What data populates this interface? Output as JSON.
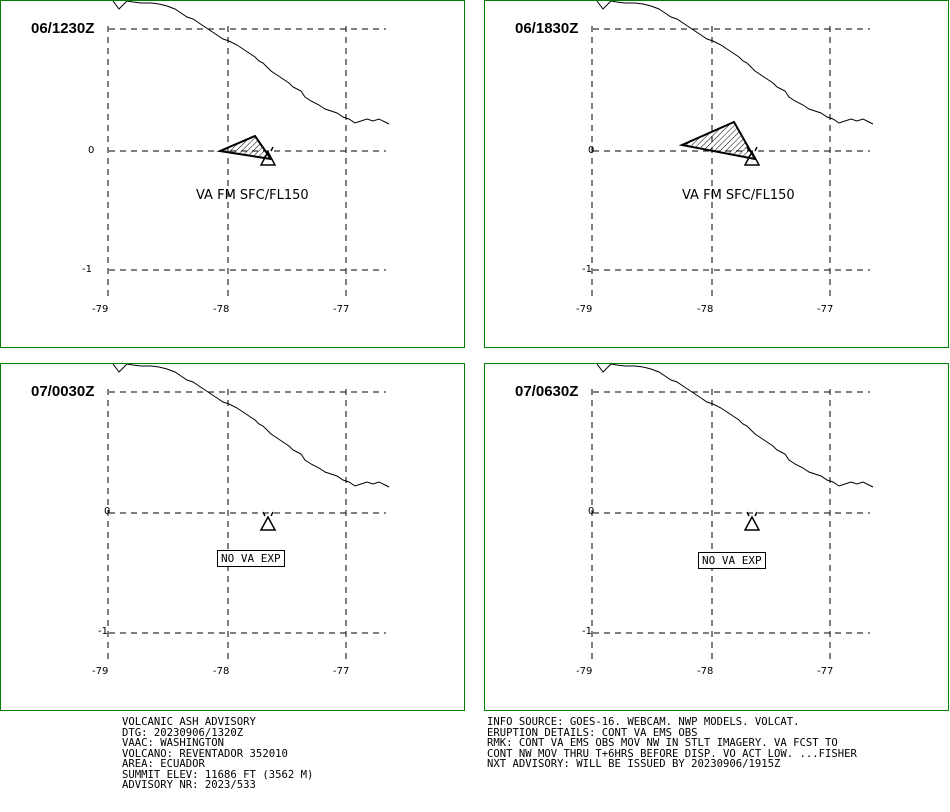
{
  "panels": [
    {
      "time": "06/1230Z",
      "label": "VA FM SFC/FL150",
      "ash": true
    },
    {
      "time": "06/1830Z",
      "label": "VA FM SFC/FL150",
      "ash": true
    },
    {
      "time": "07/0030Z",
      "label": "NO VA EXP",
      "ash": false
    },
    {
      "time": "07/0630Z",
      "label": "NO VA EXP",
      "ash": false
    }
  ],
  "axes": {
    "lon_ticks": [
      "-79",
      "-78",
      "-77"
    ],
    "lat_ticks": [
      "0",
      "-1"
    ]
  },
  "advisory_left": [
    "VOLCANIC ASH ADVISORY",
    "DTG: 20230906/1320Z",
    "VAAC: WASHINGTON",
    "VOLCANO: REVENTADOR 352010",
    "AREA: ECUADOR",
    "SUMMIT ELEV: 11686 FT (3562 M)",
    "ADVISORY NR: 2023/533"
  ],
  "advisory_right": [
    "INFO SOURCE: GOES-16. WEBCAM. NWP MODELS. VOLCAT.",
    "ERUPTION DETAILS: CONT VA EMS OBS",
    "RMK: CONT VA EMS OBS MOV NW IN STLT IMAGERY. VA FCST TO",
    "CONT NW MOV THRU T+6HRS BEFORE DISP. VO ACT LOW. ...FISHER",
    "NXT ADVISORY: WILL BE ISSUED BY 20230906/1915Z"
  ],
  "colors": {
    "frame": "#008000",
    "lines": "#000000"
  }
}
